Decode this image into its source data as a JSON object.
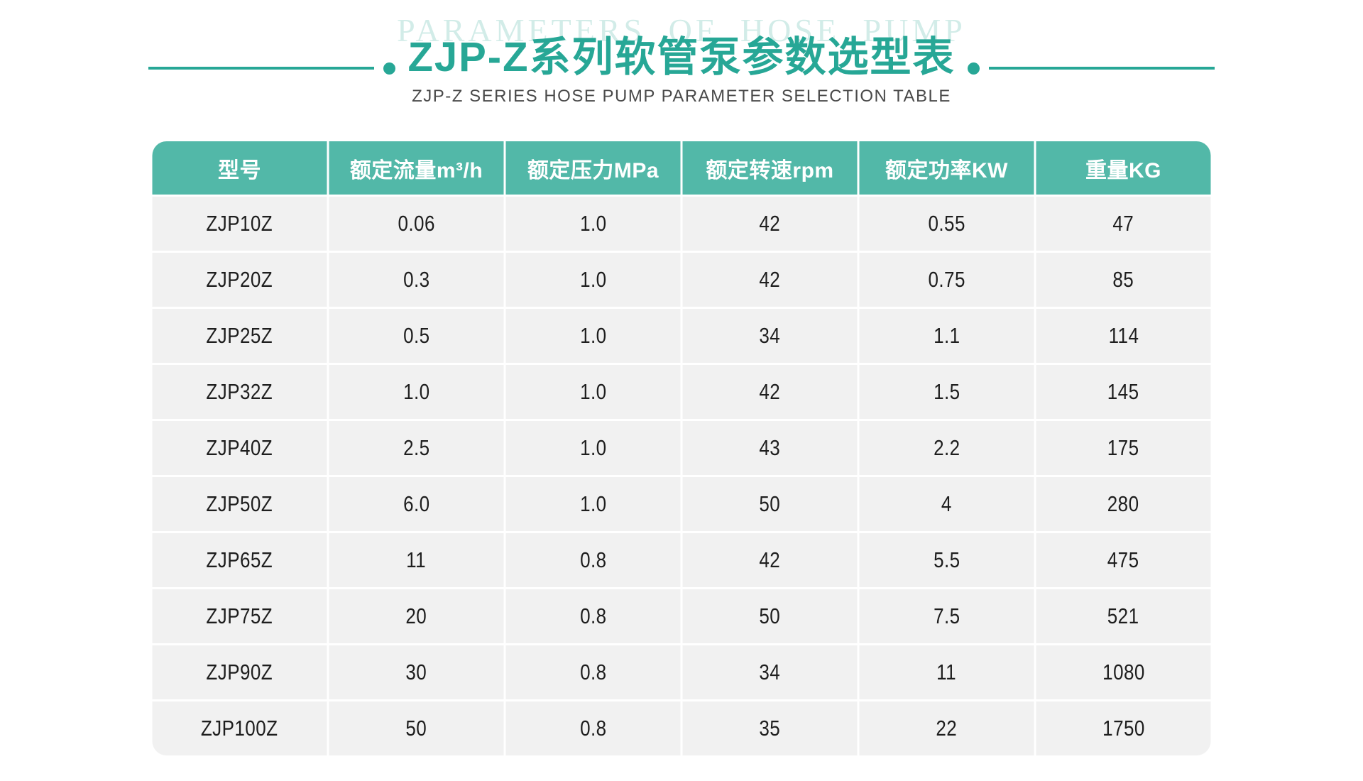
{
  "header": {
    "watermark": "PARAMETERS OF HOSE PUMP",
    "title": "ZJP-Z系列软管泵参数选型表",
    "subtitle": "ZJP-Z SERIES HOSE PUMP PARAMETER SELECTION TABLE"
  },
  "colors": {
    "accent": "#27a796",
    "header_bg": "#52b8a8",
    "watermark": "#d2ece8",
    "row_bg": "#f1f1f1",
    "cell_text": "#1e1e1e",
    "subtitle_text": "#4a4a4a"
  },
  "chart_data": {
    "type": "table",
    "title": "ZJP-Z系列软管泵参数选型表",
    "subtitle": "ZJP-Z SERIES HOSE PUMP PARAMETER SELECTION TABLE",
    "columns": [
      "型号",
      "额定流量m³/h",
      "额定压力MPa",
      "额定转速rpm",
      "额定功率KW",
      "重量KG"
    ],
    "rows": [
      [
        "ZJP10Z",
        "0.06",
        "1.0",
        "42",
        "0.55",
        "47"
      ],
      [
        "ZJP20Z",
        "0.3",
        "1.0",
        "42",
        "0.75",
        "85"
      ],
      [
        "ZJP25Z",
        "0.5",
        "1.0",
        "34",
        "1.1",
        "114"
      ],
      [
        "ZJP32Z",
        "1.0",
        "1.0",
        "42",
        "1.5",
        "145"
      ],
      [
        "ZJP40Z",
        "2.5",
        "1.0",
        "43",
        "2.2",
        "175"
      ],
      [
        "ZJP50Z",
        "6.0",
        "1.0",
        "50",
        "4",
        "280"
      ],
      [
        "ZJP65Z",
        "11",
        "0.8",
        "42",
        "5.5",
        "475"
      ],
      [
        "ZJP75Z",
        "20",
        "0.8",
        "50",
        "7.5",
        "521"
      ],
      [
        "ZJP90Z",
        "30",
        "0.8",
        "34",
        "11",
        "1080"
      ],
      [
        "ZJP100Z",
        "50",
        "0.8",
        "35",
        "22",
        "1750"
      ]
    ]
  }
}
